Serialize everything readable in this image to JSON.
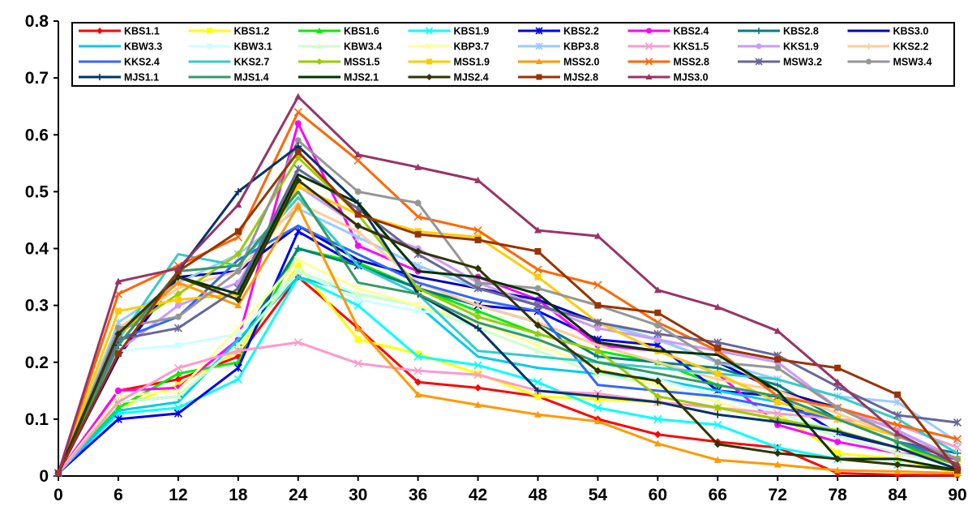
{
  "chart_data": {
    "type": "line",
    "title": "",
    "xlabel": "",
    "ylabel": "",
    "x": [
      0,
      6,
      12,
      18,
      24,
      30,
      36,
      42,
      48,
      54,
      60,
      66,
      72,
      78,
      84,
      90
    ],
    "xlim": [
      0,
      90
    ],
    "ylim": [
      0,
      0.8
    ],
    "y_ticks": [
      "0",
      "0.1",
      "0.2",
      "0.3",
      "0.4",
      "0.5",
      "0.6",
      "0.7",
      "0.8"
    ],
    "x_ticks": [
      "0",
      "6",
      "12",
      "18",
      "24",
      "30",
      "36",
      "42",
      "48",
      "54",
      "60",
      "66",
      "72",
      "78",
      "84",
      "90"
    ],
    "grid": false,
    "legend_position": "top",
    "series": [
      {
        "name": "KBS1.1",
        "color": "#ff0000",
        "marker": "diamond",
        "values": [
          0.005,
          0.15,
          0.17,
          0.21,
          0.35,
          0.26,
          0.165,
          0.155,
          0.14,
          0.1,
          0.073,
          0.06,
          0.05,
          0.005,
          0.002,
          0.001
        ]
      },
      {
        "name": "KBS1.2",
        "color": "#ffff00",
        "marker": "square",
        "values": [
          0.005,
          0.12,
          0.16,
          0.22,
          0.37,
          0.24,
          0.215,
          0.18,
          0.14,
          0.135,
          0.13,
          0.12,
          0.11,
          0.04,
          0.03,
          0.005
        ]
      },
      {
        "name": "KBS1.6",
        "color": "#00ee00",
        "marker": "triangle",
        "values": [
          0.005,
          0.12,
          0.18,
          0.2,
          0.4,
          0.375,
          0.33,
          0.29,
          0.25,
          0.22,
          0.2,
          0.16,
          0.14,
          0.1,
          0.06,
          0.01
        ]
      },
      {
        "name": "KBS1.9",
        "color": "#00ffff",
        "marker": "x",
        "values": [
          0.005,
          0.11,
          0.12,
          0.17,
          0.35,
          0.3,
          0.21,
          0.195,
          0.165,
          0.12,
          0.1,
          0.09,
          0.05,
          0.03,
          0.02,
          0.01
        ]
      },
      {
        "name": "KBS2.2",
        "color": "#0000ee",
        "marker": "star",
        "values": [
          0.005,
          0.1,
          0.11,
          0.19,
          0.43,
          0.37,
          0.33,
          0.3,
          0.29,
          0.24,
          0.23,
          0.15,
          0.14,
          0.075,
          0.05,
          0.02
        ]
      },
      {
        "name": "KBS2.4",
        "color": "#ff00ff",
        "marker": "circle",
        "values": [
          0.005,
          0.15,
          0.155,
          0.24,
          0.62,
          0.405,
          0.36,
          0.35,
          0.31,
          0.23,
          0.22,
          0.18,
          0.09,
          0.06,
          0.04,
          0.03
        ]
      },
      {
        "name": "KBS2.8",
        "color": "#008080",
        "marker": "plus",
        "values": [
          0.005,
          0.13,
          0.14,
          0.23,
          0.4,
          0.37,
          0.33,
          0.3,
          0.27,
          0.21,
          0.2,
          0.19,
          0.16,
          0.1,
          0.06,
          0.04
        ]
      },
      {
        "name": "KBS3.0",
        "color": "#0000bb",
        "marker": "none",
        "values": [
          0.005,
          0.21,
          0.35,
          0.36,
          0.44,
          0.38,
          0.35,
          0.33,
          0.31,
          0.27,
          0.24,
          0.2,
          0.15,
          0.12,
          0.08,
          0.03
        ]
      },
      {
        "name": "KBW3.3",
        "color": "#00ccee",
        "marker": "none",
        "values": [
          0.005,
          0.115,
          0.13,
          0.24,
          0.35,
          0.32,
          0.3,
          0.21,
          0.19,
          0.18,
          0.17,
          0.15,
          0.13,
          0.1,
          0.06,
          0.02
        ]
      },
      {
        "name": "KBW3.1",
        "color": "#ccffff",
        "marker": "square",
        "values": [
          0.005,
          0.22,
          0.23,
          0.25,
          0.36,
          0.31,
          0.29,
          0.28,
          0.24,
          0.2,
          0.17,
          0.14,
          0.11,
          0.08,
          0.05,
          0.02
        ]
      },
      {
        "name": "KBW3.4",
        "color": "#ccffcc",
        "marker": "triangle",
        "values": [
          0.005,
          0.13,
          0.14,
          0.23,
          0.36,
          0.32,
          0.3,
          0.26,
          0.22,
          0.18,
          0.16,
          0.13,
          0.1,
          0.07,
          0.04,
          0.02
        ]
      },
      {
        "name": "KBP3.7",
        "color": "#ffff99",
        "marker": "x",
        "values": [
          0.005,
          0.14,
          0.15,
          0.26,
          0.38,
          0.33,
          0.3,
          0.27,
          0.23,
          0.19,
          0.16,
          0.13,
          0.1,
          0.08,
          0.05,
          0.02
        ]
      },
      {
        "name": "KBP3.8",
        "color": "#99ccff",
        "marker": "star",
        "values": [
          0.005,
          0.27,
          0.34,
          0.39,
          0.47,
          0.42,
          0.37,
          0.33,
          0.3,
          0.27,
          0.24,
          0.2,
          0.17,
          0.14,
          0.13,
          0.06
        ]
      },
      {
        "name": "KKS1.5",
        "color": "#ff99cc",
        "marker": "x",
        "values": [
          0.005,
          0.13,
          0.19,
          0.22,
          0.235,
          0.198,
          0.185,
          0.178,
          0.15,
          0.145,
          0.13,
          0.12,
          0.11,
          0.1,
          0.09,
          0.05
        ]
      },
      {
        "name": "KKS1.9",
        "color": "#cc99ff",
        "marker": "circle",
        "values": [
          0.005,
          0.22,
          0.3,
          0.34,
          0.51,
          0.44,
          0.4,
          0.34,
          0.3,
          0.26,
          0.24,
          0.22,
          0.2,
          0.12,
          0.08,
          0.03
        ]
      },
      {
        "name": "KKS2.2",
        "color": "#ffcc99",
        "marker": "plus",
        "values": [
          0.005,
          0.26,
          0.33,
          0.36,
          0.48,
          0.43,
          0.34,
          0.3,
          0.27,
          0.23,
          0.2,
          0.17,
          0.15,
          0.11,
          0.07,
          0.03
        ]
      },
      {
        "name": "KKS2.4",
        "color": "#3366ff",
        "marker": "none",
        "values": [
          0.005,
          0.24,
          0.28,
          0.38,
          0.44,
          0.39,
          0.34,
          0.31,
          0.29,
          0.16,
          0.15,
          0.14,
          0.12,
          0.1,
          0.06,
          0.03
        ]
      },
      {
        "name": "KKS2.7",
        "color": "#33cccc",
        "marker": "none",
        "values": [
          0.005,
          0.24,
          0.39,
          0.37,
          0.49,
          0.37,
          0.32,
          0.22,
          0.21,
          0.2,
          0.19,
          0.18,
          0.17,
          0.14,
          0.1,
          0.04
        ]
      },
      {
        "name": "MSS1.5",
        "color": "#99cc00",
        "marker": "diamond",
        "values": [
          0.005,
          0.25,
          0.32,
          0.39,
          0.56,
          0.46,
          0.33,
          0.28,
          0.25,
          0.22,
          0.14,
          0.12,
          0.1,
          0.08,
          0.05,
          0.02
        ]
      },
      {
        "name": "MSS1.9",
        "color": "#ffcc00",
        "marker": "square",
        "values": [
          0.005,
          0.29,
          0.31,
          0.32,
          0.51,
          0.46,
          0.43,
          0.42,
          0.35,
          0.27,
          0.22,
          0.18,
          0.13,
          0.1,
          0.07,
          0.03
        ]
      },
      {
        "name": "MSS2.0",
        "color": "#ff9900",
        "marker": "triangle",
        "values": [
          0.005,
          0.25,
          0.34,
          0.3,
          0.475,
          0.26,
          0.143,
          0.125,
          0.108,
          0.096,
          0.057,
          0.028,
          0.02,
          0.01,
          0.008,
          0.005
        ]
      },
      {
        "name": "MSS2.8",
        "color": "#ff6600",
        "marker": "x",
        "values": [
          0.005,
          0.32,
          0.37,
          0.42,
          0.64,
          0.555,
          0.456,
          0.432,
          0.363,
          0.336,
          0.27,
          0.22,
          0.14,
          0.12,
          0.09,
          0.065
        ]
      },
      {
        "name": "MSW3.2",
        "color": "#666699",
        "marker": "star",
        "values": [
          0.005,
          0.24,
          0.26,
          0.33,
          0.54,
          0.47,
          0.39,
          0.33,
          0.3,
          0.27,
          0.25,
          0.235,
          0.212,
          0.157,
          0.107,
          0.094
        ]
      },
      {
        "name": "MSW3.4",
        "color": "#969696",
        "marker": "circle",
        "values": [
          0.005,
          0.26,
          0.28,
          0.36,
          0.59,
          0.5,
          0.48,
          0.34,
          0.33,
          0.3,
          0.265,
          0.2,
          0.19,
          0.12,
          0.07,
          0.03
        ]
      },
      {
        "name": "MJS1.1",
        "color": "#003366",
        "marker": "plus",
        "values": [
          0.005,
          0.23,
          0.36,
          0.5,
          0.58,
          0.48,
          0.32,
          0.26,
          0.15,
          0.14,
          0.13,
          0.108,
          0.095,
          0.078,
          0.05,
          0.012
        ]
      },
      {
        "name": "MJS1.4",
        "color": "#339966",
        "marker": "none",
        "values": [
          0.005,
          0.23,
          0.36,
          0.37,
          0.5,
          0.34,
          0.32,
          0.27,
          0.24,
          0.2,
          0.18,
          0.16,
          0.14,
          0.1,
          0.06,
          0.02
        ]
      },
      {
        "name": "MJS2.1",
        "color": "#003300",
        "marker": "none",
        "values": [
          0.005,
          0.25,
          0.35,
          0.32,
          0.53,
          0.48,
          0.36,
          0.35,
          0.32,
          0.235,
          0.22,
          0.213,
          0.15,
          0.03,
          0.03,
          0.01
        ]
      },
      {
        "name": "MJS2.4",
        "color": "#333300",
        "marker": "diamond",
        "values": [
          0.005,
          0.25,
          0.35,
          0.31,
          0.52,
          0.44,
          0.395,
          0.365,
          0.265,
          0.185,
          0.167,
          0.056,
          0.04,
          0.03,
          0.02,
          0.01
        ]
      },
      {
        "name": "MJS2.8",
        "color": "#993300",
        "marker": "square",
        "values": [
          0.005,
          0.215,
          0.36,
          0.43,
          0.57,
          0.46,
          0.425,
          0.415,
          0.395,
          0.3,
          0.287,
          0.225,
          0.205,
          0.19,
          0.143,
          0.01
        ]
      },
      {
        "name": "MJS3.0",
        "color": "#993366",
        "marker": "triangle",
        "values": [
          0.005,
          0.342,
          0.365,
          0.477,
          0.667,
          0.565,
          0.543,
          0.52,
          0.432,
          0.422,
          0.327,
          0.297,
          0.255,
          0.165,
          0.075,
          0.02
        ]
      }
    ]
  }
}
